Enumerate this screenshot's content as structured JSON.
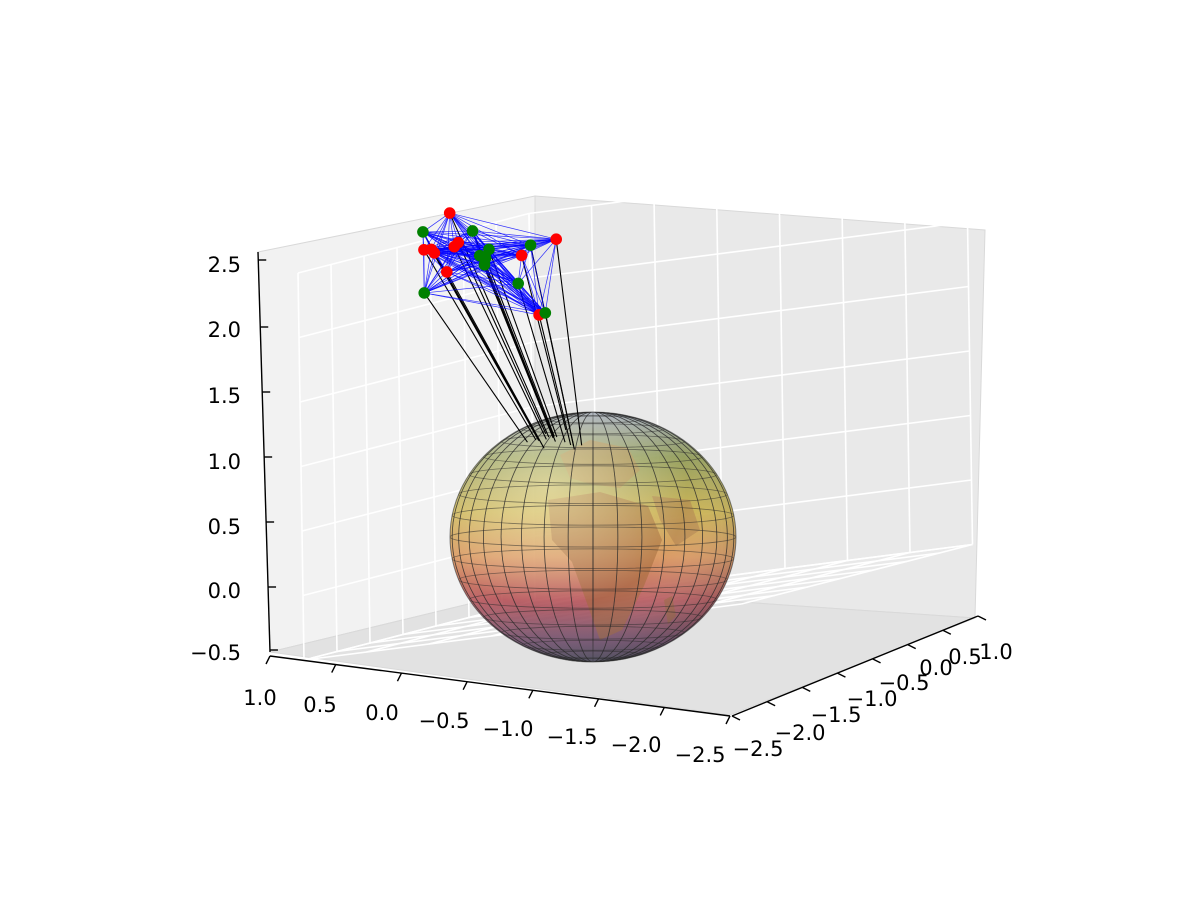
{
  "chart_data": {
    "type": "scatter",
    "projection": "3d",
    "title": "",
    "xlabel": "",
    "ylabel": "",
    "zlabel": "",
    "grid": true,
    "xlim": [
      -2.5,
      1.0
    ],
    "ylim": [
      -2.5,
      1.0
    ],
    "zlim": [
      -0.5,
      2.5
    ],
    "x_ticks": [
      "1.0",
      "0.5",
      "0.0",
      "−0.5",
      "−1.0",
      "−1.5",
      "−2.0",
      "−2.5"
    ],
    "y_ticks": [
      "−2.5",
      "−2.0",
      "−1.5",
      "−1.0",
      "−0.5",
      "0.0",
      "0.5",
      "1.0"
    ],
    "z_ticks": [
      "−0.5",
      "0.0",
      "0.5",
      "1.0",
      "1.5",
      "2.0",
      "2.5"
    ],
    "globe": {
      "center": [
        0,
        0,
        0
      ],
      "radius": 1.0,
      "texture": "earth-texture",
      "colormap": "yellow-to-red-translucent"
    },
    "series": [
      {
        "color": "#ff0000",
        "points": [
          [
            0.21,
            -1.69,
            2.76
          ],
          [
            0.42,
            -1.58,
            2.49
          ],
          [
            0.14,
            -1.88,
            2.32
          ],
          [
            0.22,
            -1.61,
            2.49
          ],
          [
            0.39,
            -1.59,
            2.46
          ],
          [
            0.51,
            -1.52,
            2.49
          ],
          [
            0.33,
            -1.34,
            2.5
          ],
          [
            -0.78,
            -1.96,
            2.47
          ],
          [
            -0.11,
            -1.22,
            2.33
          ],
          [
            -0.38,
            -1.48,
            1.87
          ]
        ]
      },
      {
        "color": "#008000",
        "points": [
          [
            0.59,
            -1.38,
            2.62
          ],
          [
            -0.06,
            -1.86,
            2.61
          ],
          [
            -0.02,
            -1.54,
            2.43
          ],
          [
            0.06,
            -1.53,
            2.39
          ],
          [
            -0.58,
            -1.97,
            2.45
          ],
          [
            0.06,
            -1.46,
            2.31
          ],
          [
            0.64,
            -1.28,
            2.14
          ],
          [
            -0.27,
            -1.58,
            2.14
          ],
          [
            -0.52,
            -1.65,
            1.89
          ],
          [
            0.05,
            -1.46,
            2.36
          ]
        ]
      }
    ],
    "edges_color": "#0000ff",
    "projection_lines_color": "#000000"
  }
}
